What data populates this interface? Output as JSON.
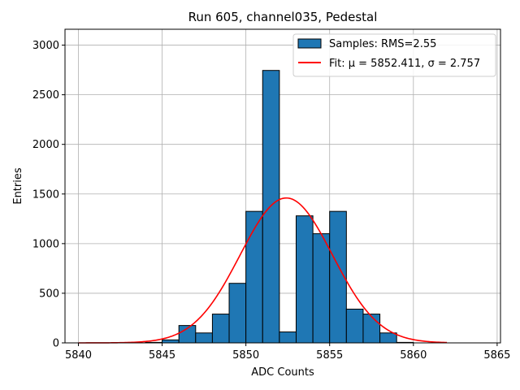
{
  "chart_data": {
    "type": "bar",
    "title": "Run 605, channel035, Pedestal",
    "xlabel": "ADC Counts",
    "ylabel": "Entries",
    "xlim": [
      5839.2,
      5865.2
    ],
    "ylim": [
      0,
      3160
    ],
    "xticks": [
      5840,
      5845,
      5850,
      5855,
      5860,
      5865
    ],
    "yticks": [
      0,
      500,
      1000,
      1500,
      2000,
      2500,
      3000
    ],
    "grid": true,
    "legend_position": "top-right",
    "bin_width": 1,
    "bins": [
      {
        "x0": 5844,
        "count": 5
      },
      {
        "x0": 5845,
        "count": 30
      },
      {
        "x0": 5846,
        "count": 175
      },
      {
        "x0": 5847,
        "count": 100
      },
      {
        "x0": 5848,
        "count": 290
      },
      {
        "x0": 5849,
        "count": 600
      },
      {
        "x0": 5850,
        "count": 1325
      },
      {
        "x0": 5851,
        "count": 2745
      },
      {
        "x0": 5852,
        "count": 110
      },
      {
        "x0": 5853,
        "count": 1280
      },
      {
        "x0": 5854,
        "count": 1100
      },
      {
        "x0": 5855,
        "count": 1325
      },
      {
        "x0": 5856,
        "count": 340
      },
      {
        "x0": 5857,
        "count": 290
      },
      {
        "x0": 5858,
        "count": 100
      },
      {
        "x0": 5859,
        "count": 5
      }
    ],
    "series": [
      {
        "name": "Samples: RMS=2.55",
        "kind": "histogram",
        "color": "#1f77b4",
        "edgecolor": "#000000"
      },
      {
        "name": "Fit: μ = 5852.411, σ = 2.757",
        "kind": "gaussian",
        "color": "#ff0000",
        "mu": 5852.411,
        "sigma": 2.757,
        "amplitude": 1460,
        "x_range": [
          5840,
          5862
        ]
      }
    ],
    "legend": [
      {
        "label": "Samples: RMS=2.55",
        "swatch": "patch"
      },
      {
        "label": "Fit: μ = 5852.411, σ = 2.757",
        "swatch": "line"
      }
    ]
  }
}
